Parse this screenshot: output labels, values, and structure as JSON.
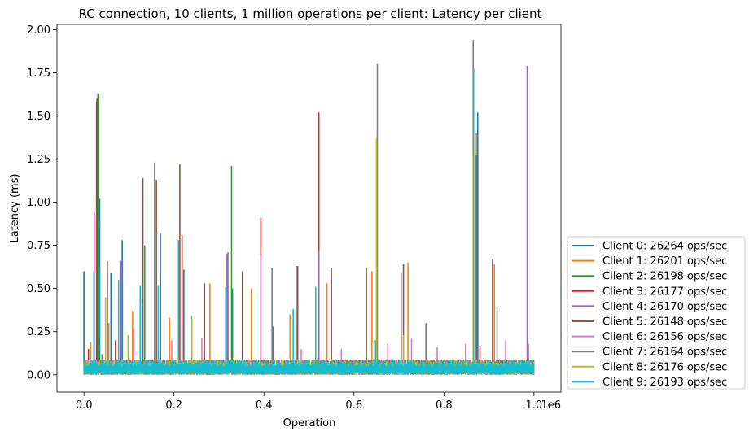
{
  "chart_data": {
    "type": "line",
    "title": "RC connection, 10 clients, 1 million operations per client: Latency per client",
    "xlabel": "Operation",
    "ylabel": "Latency (ms)",
    "x_offset_label": "1e6",
    "xlim": [
      -60000,
      1060000
    ],
    "ylim": [
      -0.1,
      2.03
    ],
    "x_scale_factor": 1000000,
    "x_ticks": [
      0,
      200000,
      400000,
      600000,
      800000,
      1000000
    ],
    "x_tick_labels": [
      "0.0",
      "0.2",
      "0.4",
      "0.6",
      "0.8",
      "1.0"
    ],
    "y_ticks": [
      0,
      0.25,
      0.5,
      0.75,
      1.0,
      1.25,
      1.5,
      1.75,
      2.0
    ],
    "y_tick_labels": [
      "0.00",
      "0.25",
      "0.50",
      "0.75",
      "1.00",
      "1.25",
      "1.50",
      "1.75",
      "2.00"
    ],
    "baseline_band": [
      0.0,
      0.09
    ],
    "legend_position": "outside-lower-right",
    "series": [
      {
        "name": "Client 0: 26264 ops/sec",
        "color": "#1f77b4",
        "spikes": [
          [
            0,
            0.6
          ],
          [
            35000,
            1.02
          ],
          [
            60000,
            0.59
          ],
          [
            85000,
            0.78
          ],
          [
            130000,
            0.42
          ],
          [
            170000,
            0.82
          ],
          [
            222000,
            0.61
          ],
          [
            330000,
            0.5
          ],
          [
            875000,
            1.52
          ]
        ]
      },
      {
        "name": "Client 1: 26201 ops/sec",
        "color": "#ff7f0e",
        "spikes": [
          [
            15000,
            0.19
          ],
          [
            55000,
            0.3
          ],
          [
            108000,
            0.37
          ],
          [
            190000,
            0.33
          ],
          [
            280000,
            0.53
          ],
          [
            372000,
            0.5
          ],
          [
            458000,
            0.35
          ],
          [
            540000,
            0.53
          ],
          [
            640000,
            0.6
          ],
          [
            720000,
            0.65
          ],
          [
            872000,
            1.4
          ],
          [
            912000,
            0.64
          ]
        ]
      },
      {
        "name": "Client 2: 26198 ops/sec",
        "color": "#2ca02c",
        "spikes": [
          [
            31000,
            1.63
          ],
          [
            135000,
            0.75
          ],
          [
            328000,
            1.21
          ],
          [
            420000,
            0.28
          ]
        ]
      },
      {
        "name": "Client 3: 26177 ops/sec",
        "color": "#d62728",
        "spikes": [
          [
            10000,
            0.15
          ],
          [
            29000,
            1.6
          ],
          [
            70000,
            0.2
          ],
          [
            218000,
            0.81
          ],
          [
            393000,
            0.91
          ],
          [
            522000,
            1.52
          ],
          [
            880000,
            0.17
          ]
        ]
      },
      {
        "name": "Client 4: 26170 ops/sec",
        "color": "#9467bd",
        "spikes": [
          [
            82000,
            0.66
          ],
          [
            318000,
            0.7
          ],
          [
            522000,
            0.72
          ],
          [
            985000,
            1.79
          ]
        ]
      },
      {
        "name": "Client 5: 26148 ops/sec",
        "color": "#8c564b",
        "spikes": [
          [
            28000,
            1.58
          ],
          [
            52000,
            0.66
          ],
          [
            131000,
            1.14
          ],
          [
            161000,
            1.13
          ],
          [
            213000,
            1.22
          ],
          [
            268000,
            0.53
          ],
          [
            352000,
            0.6
          ],
          [
            475000,
            0.63
          ],
          [
            550000,
            0.62
          ],
          [
            710000,
            0.64
          ],
          [
            872000,
            1.27
          ],
          [
            908000,
            0.67
          ]
        ]
      },
      {
        "name": "Client 6: 26156 ops/sec",
        "color": "#e377c2",
        "spikes": [
          [
            23000,
            0.94
          ],
          [
            110000,
            0.27
          ],
          [
            195000,
            0.2
          ],
          [
            262000,
            0.21
          ],
          [
            393000,
            0.69
          ],
          [
            483000,
            0.15
          ],
          [
            572000,
            0.15
          ],
          [
            675000,
            0.18
          ],
          [
            728000,
            0.21
          ],
          [
            785000,
            0.16
          ],
          [
            848000,
            0.18
          ],
          [
            937000,
            0.2
          ],
          [
            988000,
            0.18
          ]
        ]
      },
      {
        "name": "Client 7: 26164 ops/sec",
        "color": "#7f7f7f",
        "spikes": [
          [
            40000,
            0.12
          ],
          [
            157000,
            1.23
          ],
          [
            320000,
            0.71
          ],
          [
            418000,
            0.62
          ],
          [
            472000,
            0.63
          ],
          [
            628000,
            0.62
          ],
          [
            652000,
            1.8
          ],
          [
            705000,
            0.59
          ],
          [
            760000,
            0.3
          ],
          [
            865000,
            1.94
          ],
          [
            918000,
            0.39
          ]
        ]
      },
      {
        "name": "Client 8: 26176 ops/sec",
        "color": "#bcbd22",
        "spikes": [
          [
            48000,
            0.45
          ],
          [
            98000,
            0.23
          ],
          [
            240000,
            0.34
          ],
          [
            650000,
            1.37
          ],
          [
            710000,
            0.23
          ],
          [
            865000,
            1.3
          ]
        ]
      },
      {
        "name": "Client 9: 26193 ops/sec",
        "color": "#17becf",
        "spikes": [
          [
            22000,
            0.6
          ],
          [
            77000,
            0.55
          ],
          [
            125000,
            0.52
          ],
          [
            165000,
            0.52
          ],
          [
            210000,
            0.78
          ],
          [
            315000,
            0.51
          ],
          [
            465000,
            0.38
          ],
          [
            515000,
            0.51
          ],
          [
            648000,
            0.2
          ],
          [
            866000,
            1.78
          ]
        ]
      }
    ]
  }
}
